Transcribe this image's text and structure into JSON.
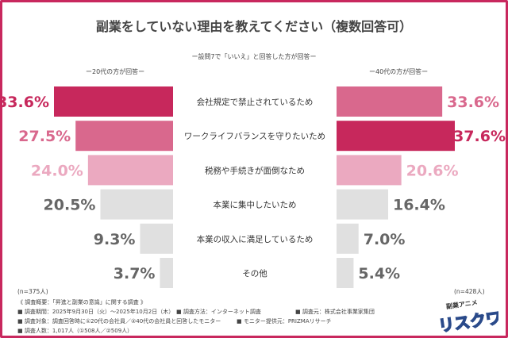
{
  "chart_data": {
    "type": "bar",
    "title": "副業をしていない理由を教えてください（複数回答可）",
    "subtitle": "ー設問7で「いいえ」と回答した方が回答ー",
    "categories": [
      "会社規定で禁止されているため",
      "ワークライフバランスを守りたいため",
      "税務や手続きが面倒なため",
      "本業に集中したいため",
      "本業の収入に満足しているため",
      "その他"
    ],
    "series": [
      {
        "name": "ー20代の方が回答ー",
        "values": [
          33.6,
          27.5,
          24.0,
          20.5,
          9.3,
          3.7
        ],
        "n": "(n=375人)"
      },
      {
        "name": "ー40代の方が回答ー",
        "values": [
          33.6,
          37.6,
          20.6,
          16.4,
          7.0,
          5.4
        ],
        "n": "(n=428人)"
      }
    ],
    "unit": "%",
    "colors": {
      "rank1": "#c7285c",
      "rank2": "#d9688d",
      "rank3": "#eba9c0",
      "other": "#e0e0e0",
      "other_text": "#666666"
    }
  },
  "notes": {
    "heading": "《 調査概要：「昇進と副業の意識」に関する調査 》",
    "items": [
      [
        "■ 調査期間：2025年9月30日（火）～2025年10月2日（木）",
        "■ 調査方法：インターネット調査",
        "■ 調査元：株式会社事業家集団"
      ],
      [
        "■ 調査対象：調査回答時に①20代の会社員／②40代の会社員と回答したモニター",
        "■ モニター提供元：PRIZMAリサーチ"
      ],
      [
        "■ 調査人数：1,017人（①508人／②509人）"
      ]
    ]
  },
  "logo": {
    "top": "副業アニメ",
    "main": "リスクワ!"
  }
}
